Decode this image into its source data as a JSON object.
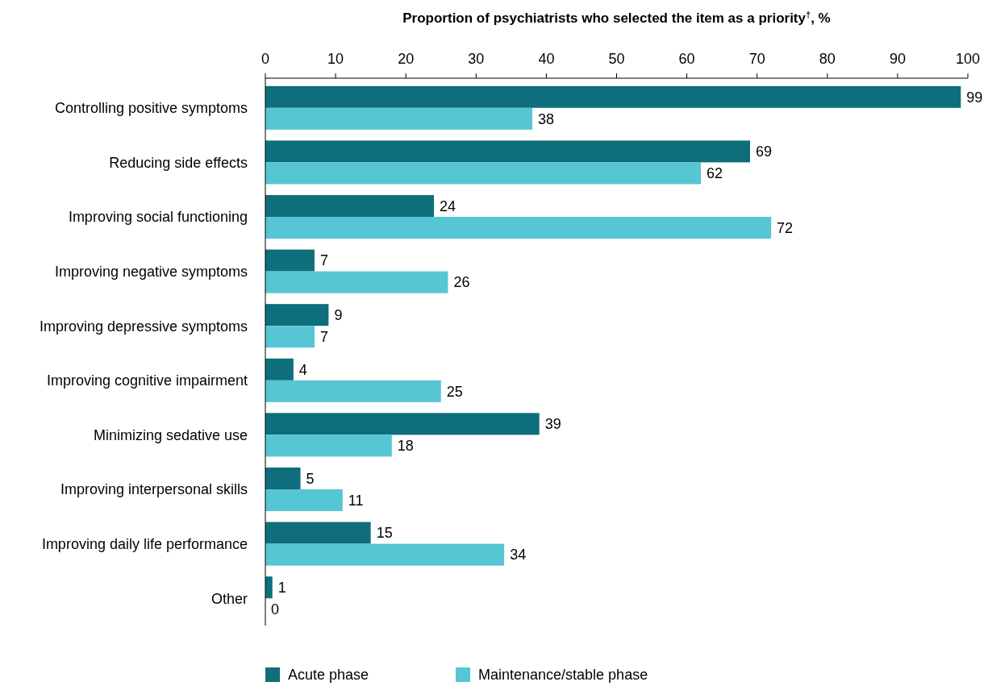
{
  "chart_data": {
    "type": "bar",
    "orientation": "horizontal",
    "xlabel": "Proportion of psychiatrists who selected the item as a priority$^{†}$, %",
    "categories": [
      "Controlling positive symptoms",
      "Reducing side effects",
      "Improving social functioning",
      "Improving negative symptoms",
      "Improving depressive symptoms",
      "Improving cognitive impairment",
      "Minimizing sedative use",
      "Improving interpersonal skills",
      "Improving daily life performance",
      "Other"
    ],
    "series": [
      {
        "name": "Acute phase",
        "color": "#0e6e7c",
        "values": [
          99,
          69,
          24,
          7,
          9,
          4,
          39,
          5,
          15,
          1
        ]
      },
      {
        "name": "Maintenance/stable phase",
        "color": "#56c6d4",
        "values": [
          38,
          62,
          72,
          26,
          7,
          25,
          18,
          11,
          34,
          0
        ]
      }
    ],
    "xlim": [
      0,
      100
    ],
    "xticks": [
      0,
      10,
      20,
      30,
      40,
      50,
      60,
      70,
      80,
      90,
      100
    ],
    "data_labels": true,
    "grid": false,
    "legend": "bottom"
  }
}
